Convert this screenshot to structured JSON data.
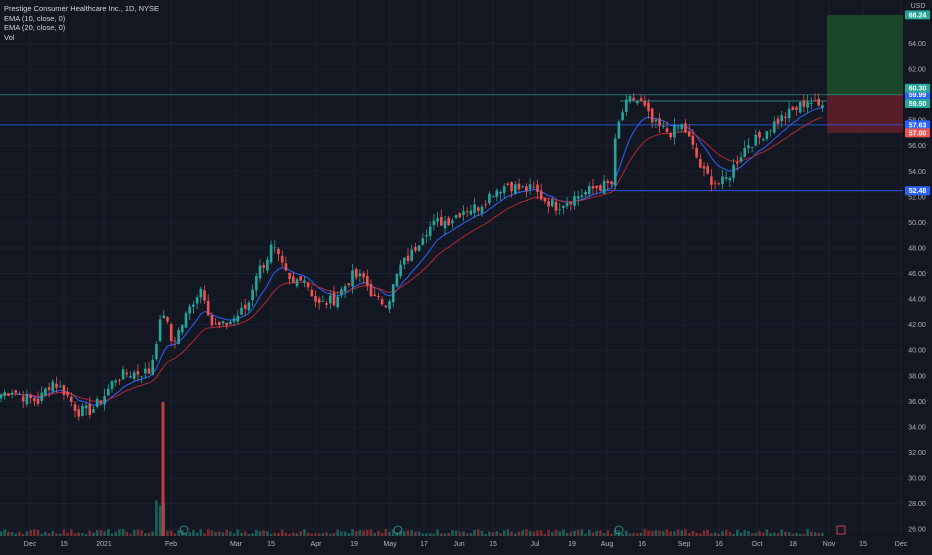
{
  "legend": {
    "title": "Prestige Consumer Healthcare Inc., 1D, NYSE",
    "ema10": "EMA (10, close, 0)",
    "ema20": "EMA (20, close, 0)",
    "vol": "Vol"
  },
  "axis": {
    "currency": "USD",
    "y_ticks": [
      "26.00",
      "28.00",
      "30.00",
      "32.00",
      "34.00",
      "36.00",
      "38.00",
      "40.00",
      "42.00",
      "44.00",
      "46.00",
      "48.00",
      "50.00",
      "52.00",
      "54.00",
      "56.00",
      "58.00",
      "62.00",
      "64.00"
    ],
    "x_ticks": [
      "Dec",
      "15",
      "2021",
      "Feb",
      "Mar",
      "15",
      "Apr",
      "19",
      "May",
      "17",
      "Jun",
      "15",
      "Jul",
      "19",
      "Aug",
      "16",
      "Sep",
      "16",
      "Oct",
      "18",
      "Nov",
      "15",
      "Dec"
    ]
  },
  "price_tags": [
    {
      "value": "66.24",
      "color": "#26a69a"
    },
    {
      "value": "59.99",
      "color": "#2962ff"
    },
    {
      "value": "60.30",
      "color": "#26a69a"
    },
    {
      "value": "59.50",
      "color": "#26a69a"
    },
    {
      "value": "57.63",
      "color": "#2962ff"
    },
    {
      "value": "57.00",
      "color": "#ef5350"
    },
    {
      "value": "52.48",
      "color": "#2962ff"
    }
  ],
  "horizontal_levels": [
    59.99,
    57.63,
    52.48
  ],
  "position_tool": {
    "entry": 59.99,
    "target": 66.24,
    "stop": 57.0
  },
  "chart_data": {
    "type": "candlestick",
    "title": "Prestige Consumer Healthcare Inc., 1D, NYSE",
    "ylim": [
      25.5,
      67.0
    ],
    "series": [
      {
        "name": "Close",
        "points": [
          [
            "Dec 1",
            36.4
          ],
          [
            "Dec 15",
            36.2
          ],
          [
            "Dec 24",
            37.6
          ],
          [
            "Jan 4",
            35.0
          ],
          [
            "Jan 15",
            37.6
          ],
          [
            "Jan 22",
            39.6
          ],
          [
            "Jan 26",
            43.0
          ],
          [
            "Feb 1",
            41.5
          ],
          [
            "Feb 8",
            44.6
          ],
          [
            "Feb 15",
            41.5
          ],
          [
            "Feb 22",
            42.6
          ],
          [
            "Mar 1",
            43.0
          ],
          [
            "Mar 8",
            47.8
          ],
          [
            "Mar 15",
            46.0
          ],
          [
            "Mar 22",
            44.5
          ],
          [
            "Apr 1",
            43.6
          ],
          [
            "Apr 12",
            44.2
          ],
          [
            "Apr 19",
            45.8
          ],
          [
            "Apr 26",
            44.0
          ],
          [
            "May 3",
            43.5
          ],
          [
            "May 10",
            46.8
          ],
          [
            "May 17",
            49.0
          ],
          [
            "May 24",
            50.0
          ],
          [
            "Jun 7",
            50.6
          ],
          [
            "Jun 15",
            51.3
          ],
          [
            "Jun 25",
            52.8
          ],
          [
            "Jul 6",
            52.0
          ],
          [
            "Jul 12",
            51.8
          ],
          [
            "Jul 19",
            51.7
          ],
          [
            "Jul 26",
            52.4
          ],
          [
            "Aug 2",
            52.8
          ],
          [
            "Aug 6",
            59.5
          ],
          [
            "Aug 10",
            60.3
          ],
          [
            "Aug 16",
            58.8
          ],
          [
            "Aug 23",
            57.0
          ],
          [
            "Aug 30",
            57.6
          ],
          [
            "Sep 6",
            55.5
          ],
          [
            "Sep 13",
            53.3
          ],
          [
            "Sep 20",
            53.0
          ],
          [
            "Sep 27",
            55.5
          ],
          [
            "Oct 4",
            55.5
          ],
          [
            "Oct 11",
            57.5
          ],
          [
            "Oct 18",
            58.3
          ],
          [
            "Oct 25",
            59.5
          ],
          [
            "Nov 1",
            59.99
          ]
        ]
      },
      {
        "name": "EMA (10, close, 0)"
      },
      {
        "name": "EMA (20, close, 0)"
      },
      {
        "name": "Vol",
        "spike": "Jan 27"
      }
    ]
  }
}
